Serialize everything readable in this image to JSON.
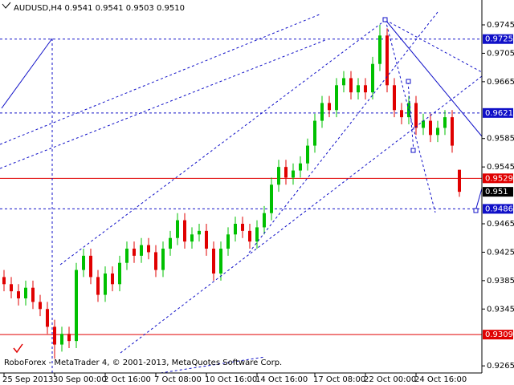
{
  "chart_data": {
    "type": "candlestick",
    "title": "AUDUSD,H4  0.9541 0.9541 0.9503 0.9510",
    "footer": "RoboForex - MetaTrader 4, © 2001-2013, MetaQuotes Software Corp.",
    "categories": [
      "25 Sep 2013",
      null,
      null,
      null,
      null,
      null,
      null,
      "30 Sep 00:00",
      null,
      null,
      null,
      null,
      null,
      null,
      "2 Oct 16:00",
      null,
      null,
      null,
      null,
      null,
      null,
      "7 Oct 08:00",
      null,
      null,
      null,
      null,
      null,
      null,
      "10 Oct 16:00",
      null,
      null,
      null,
      null,
      null,
      null,
      "14 Oct 16:00",
      null,
      null,
      null,
      null,
      null,
      null,
      null,
      "17 Oct 08:00",
      null,
      null,
      null,
      null,
      null,
      null,
      "22 Oct 00:00",
      null,
      null,
      null,
      null,
      null,
      null,
      "24 Oct 16:00",
      null,
      null,
      null,
      null,
      null,
      null
    ],
    "open": [
      0.939,
      0.938,
      0.937,
      0.936,
      0.9375,
      0.9355,
      0.9345,
      0.932,
      0.9295,
      0.931,
      0.93,
      0.94,
      0.942,
      0.939,
      0.9365,
      0.9395,
      0.938,
      0.941,
      0.943,
      0.942,
      0.9435,
      0.9425,
      0.94,
      0.943,
      0.9445,
      0.947,
      0.944,
      0.945,
      0.9455,
      0.943,
      0.9395,
      0.943,
      0.945,
      0.9465,
      0.9455,
      0.944,
      0.946,
      0.948,
      0.952,
      0.9545,
      0.953,
      0.954,
      0.955,
      0.9575,
      0.961,
      0.9635,
      0.9625,
      0.966,
      0.967,
      0.965,
      0.966,
      0.965,
      0.969,
      0.973,
      0.966,
      0.9625,
      0.9615,
      0.9635,
      0.96,
      0.961,
      0.959,
      0.96,
      0.9615,
      0.9541
    ],
    "high": [
      0.94,
      0.939,
      0.938,
      0.9385,
      0.9385,
      0.9365,
      0.9355,
      0.933,
      0.932,
      0.932,
      0.941,
      0.943,
      0.943,
      0.94,
      0.9405,
      0.9405,
      0.942,
      0.944,
      0.944,
      0.9445,
      0.9445,
      0.9435,
      0.944,
      0.9455,
      0.948,
      0.948,
      0.946,
      0.9465,
      0.9465,
      0.944,
      0.944,
      0.946,
      0.9475,
      0.9475,
      0.9465,
      0.947,
      0.949,
      0.953,
      0.9555,
      0.9555,
      0.955,
      0.956,
      0.9585,
      0.962,
      0.9645,
      0.9645,
      0.967,
      0.968,
      0.968,
      0.967,
      0.967,
      0.97,
      0.9745,
      0.974,
      0.967,
      0.9635,
      0.9645,
      0.9645,
      0.962,
      0.962,
      0.961,
      0.9625,
      0.9625,
      0.9541
    ],
    "low": [
      0.937,
      0.936,
      0.935,
      0.935,
      0.9345,
      0.9335,
      0.931,
      0.9275,
      0.9285,
      0.929,
      0.929,
      0.939,
      0.938,
      0.9355,
      0.9355,
      0.937,
      0.937,
      0.94,
      0.941,
      0.941,
      0.9415,
      0.939,
      0.939,
      0.942,
      0.9435,
      0.943,
      0.943,
      0.944,
      0.942,
      0.9385,
      0.9385,
      0.942,
      0.944,
      0.9445,
      0.943,
      0.943,
      0.945,
      0.947,
      0.951,
      0.952,
      0.952,
      0.953,
      0.954,
      0.9565,
      0.96,
      0.9615,
      0.9615,
      0.965,
      0.964,
      0.964,
      0.964,
      0.964,
      0.968,
      0.965,
      0.9615,
      0.9605,
      0.9605,
      0.959,
      0.959,
      0.958,
      0.958,
      0.959,
      0.9565,
      0.9503
    ],
    "close": [
      0.938,
      0.937,
      0.936,
      0.9375,
      0.9355,
      0.9345,
      0.932,
      0.9295,
      0.931,
      0.93,
      0.94,
      0.942,
      0.939,
      0.9365,
      0.9395,
      0.938,
      0.941,
      0.943,
      0.942,
      0.9435,
      0.9425,
      0.94,
      0.943,
      0.9445,
      0.947,
      0.944,
      0.945,
      0.9455,
      0.943,
      0.9395,
      0.943,
      0.945,
      0.9465,
      0.9455,
      0.944,
      0.946,
      0.948,
      0.952,
      0.9545,
      0.953,
      0.954,
      0.955,
      0.9575,
      0.961,
      0.9635,
      0.9625,
      0.966,
      0.967,
      0.965,
      0.966,
      0.965,
      0.969,
      0.973,
      0.966,
      0.9625,
      0.9615,
      0.9635,
      0.96,
      0.961,
      0.959,
      0.96,
      0.9615,
      0.9575,
      0.951
    ],
    "up_color": "#00c000",
    "down_color": "#e00000",
    "ylim": [
      0.9255,
      0.978
    ],
    "yticks": [
      0.9745,
      0.9705,
      0.9665,
      0.9585,
      0.9545,
      0.9465,
      0.9425,
      0.9385,
      0.9345,
      0.9265
    ],
    "levels": [
      {
        "value": 0.9725,
        "color": "#1010c8",
        "style": "dashed"
      },
      {
        "value": 0.9621,
        "color": "#1010c8",
        "style": "dashed"
      },
      {
        "value": 0.9529,
        "color": "#e00000",
        "style": "solid"
      },
      {
        "value": 0.9486,
        "color": "#1010c8",
        "style": "dashed"
      },
      {
        "value": 0.9309,
        "color": "#e00000",
        "style": "solid"
      }
    ],
    "current_price": 0.951
  }
}
